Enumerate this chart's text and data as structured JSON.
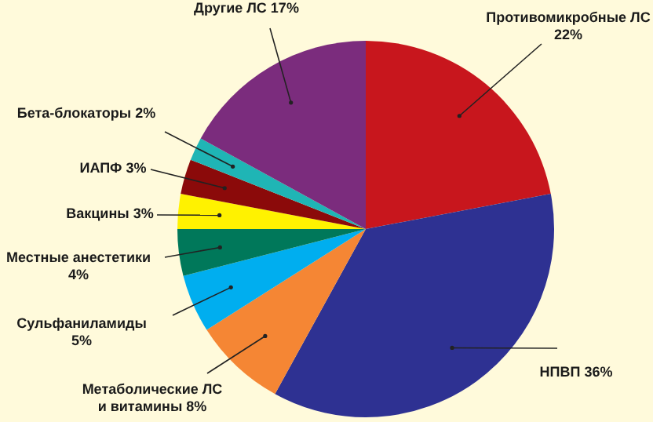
{
  "chart_data": {
    "type": "pie",
    "categories": [
      "Противомикробные ЛС",
      "НПВП",
      "Метаболические ЛС и витамины",
      "Сульфаниламиды",
      "Местные анестетики",
      "Вакцины",
      "ИАПФ",
      "Бета-блокаторы",
      "Другие ЛС"
    ],
    "values": [
      22,
      36,
      8,
      5,
      4,
      3,
      3,
      2,
      17
    ],
    "value_labels": [
      "22%",
      "36%",
      "8%",
      "5%",
      "4%",
      "3%",
      "3%",
      "2%",
      "17%"
    ],
    "colors": [
      "#c8161d",
      "#2e3192",
      "#f58634",
      "#00aeef",
      "#00785a",
      "#fff200",
      "#8b0a0a",
      "#1fb5b5",
      "#7b2c7d"
    ]
  }
}
